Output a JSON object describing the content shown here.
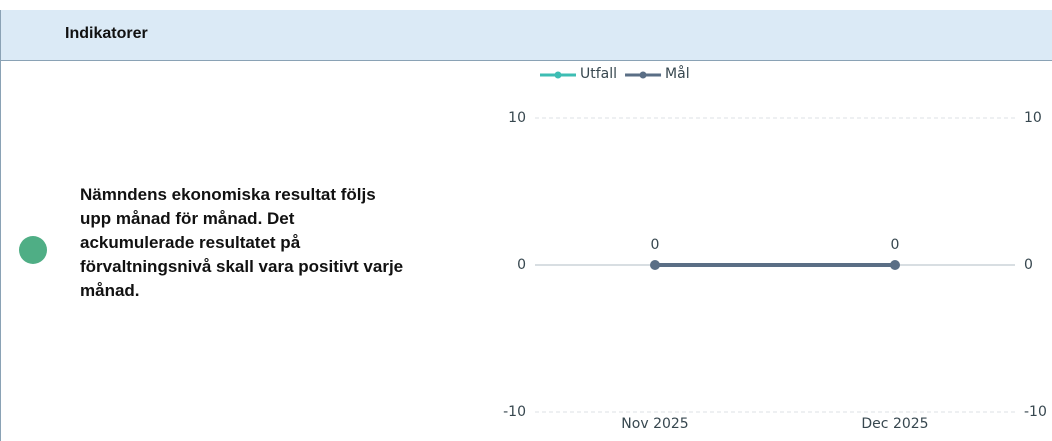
{
  "header": {
    "title": "Indikatorer"
  },
  "indicator": {
    "text_lines": [
      "Nämndens ekonomiska resultat följs",
      "upp månad för månad. Det",
      "ackumulerade resultatet på",
      "förvaltningsnivå skall vara positivt varje",
      "månad."
    ]
  },
  "chart_data": {
    "type": "line",
    "categories": [
      "Nov 2025",
      "Dec 2025"
    ],
    "series": [
      {
        "name": "Utfall",
        "color": "#3dbdb3",
        "values": [
          null,
          null
        ]
      },
      {
        "name": "Mål",
        "color": "#5a6e85",
        "values": [
          0,
          0
        ]
      }
    ],
    "ylim": [
      -10,
      10
    ],
    "yticks": [
      -10,
      0,
      10
    ],
    "y2lim": [
      -10,
      10
    ],
    "y2ticks": [
      -10,
      0,
      10
    ],
    "grid": true,
    "legend": "top"
  }
}
